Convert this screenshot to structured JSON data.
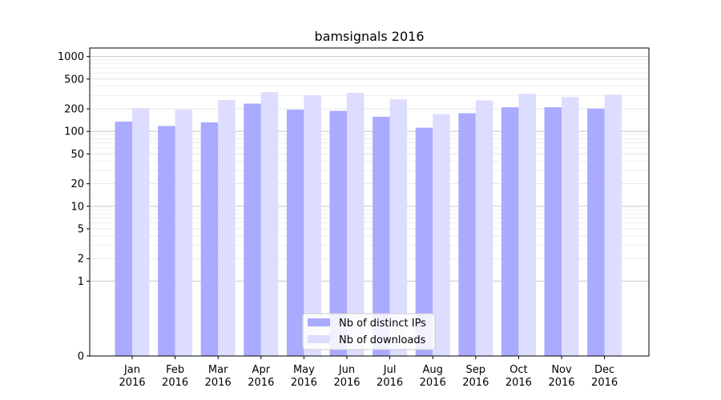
{
  "chart_data": {
    "type": "bar",
    "title": "bamsignals 2016",
    "xlabel": "",
    "ylabel": "",
    "yscale": "symlog",
    "ylim": [
      0,
      1300
    ],
    "categories": [
      [
        "Jan",
        "2016"
      ],
      [
        "Feb",
        "2016"
      ],
      [
        "Mar",
        "2016"
      ],
      [
        "Apr",
        "2016"
      ],
      [
        "May",
        "2016"
      ],
      [
        "Jun",
        "2016"
      ],
      [
        "Jul",
        "2016"
      ],
      [
        "Aug",
        "2016"
      ],
      [
        "Sep",
        "2016"
      ],
      [
        "Oct",
        "2016"
      ],
      [
        "Nov",
        "2016"
      ],
      [
        "Dec",
        "2016"
      ]
    ],
    "yticks": [
      {
        "value": 0,
        "label": "0"
      },
      {
        "value": 1,
        "label": "1"
      },
      {
        "value": 2,
        "label": "2"
      },
      {
        "value": 5,
        "label": "5"
      },
      {
        "value": 10,
        "label": "10"
      },
      {
        "value": 20,
        "label": "20"
      },
      {
        "value": 50,
        "label": "50"
      },
      {
        "value": 100,
        "label": "100"
      },
      {
        "value": 200,
        "label": "200"
      },
      {
        "value": 500,
        "label": "500"
      },
      {
        "value": 1000,
        "label": "1000"
      }
    ],
    "grid": true,
    "legend_position": "bottom-center",
    "series": [
      {
        "name": "Nb of distinct IPs",
        "color": "#aaaaff",
        "values": [
          135,
          118,
          132,
          235,
          195,
          188,
          157,
          112,
          175,
          210,
          210,
          202
        ]
      },
      {
        "name": "Nb of downloads",
        "color": "#ddddff",
        "values": [
          205,
          195,
          262,
          335,
          303,
          328,
          268,
          170,
          260,
          318,
          288,
          310
        ]
      }
    ]
  }
}
